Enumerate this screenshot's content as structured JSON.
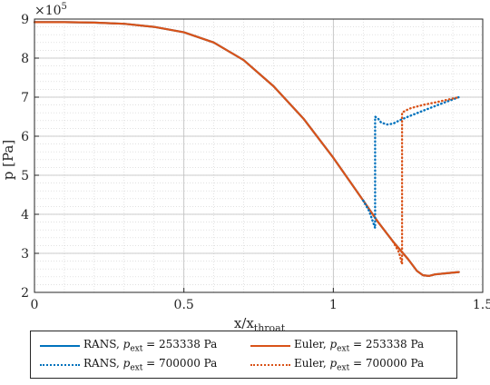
{
  "chart_data": {
    "type": "line",
    "xlabel": "x/x",
    "xlabel_sub": "throat",
    "ylabel": "p [Pa]",
    "y_exponent_label": "×10",
    "y_exponent_power": "5",
    "xlim": [
      0,
      1.5
    ],
    "ylim": [
      2,
      9
    ],
    "x_ticks": [
      "0",
      "0.5",
      "1",
      "1.5"
    ],
    "y_ticks": [
      "2",
      "3",
      "4",
      "5",
      "6",
      "7",
      "8",
      "9"
    ],
    "grid": "on (major and minor, dotted)",
    "legend_placement": "below plot, 2 columns",
    "series": [
      {
        "name_main": "RANS, ",
        "name_sym": "p",
        "name_sub": "ext",
        "name_value": " = 253338 Pa",
        "color": "#0072BD",
        "style": "solid",
        "points": [
          [
            0,
            8.92
          ],
          [
            0.1,
            8.92
          ],
          [
            0.2,
            8.91
          ],
          [
            0.3,
            8.88
          ],
          [
            0.4,
            8.8
          ],
          [
            0.5,
            8.66
          ],
          [
            0.6,
            8.4
          ],
          [
            0.7,
            7.95
          ],
          [
            0.8,
            7.28
          ],
          [
            0.9,
            6.45
          ],
          [
            1.0,
            5.45
          ],
          [
            1.05,
            4.9
          ],
          [
            1.1,
            4.35
          ],
          [
            1.15,
            3.8
          ],
          [
            1.2,
            3.3
          ],
          [
            1.25,
            2.85
          ],
          [
            1.28,
            2.55
          ],
          [
            1.3,
            2.44
          ],
          [
            1.32,
            2.42
          ],
          [
            1.34,
            2.46
          ],
          [
            1.38,
            2.49
          ],
          [
            1.42,
            2.52
          ]
        ]
      },
      {
        "name_main": "RANS, ",
        "name_sym": "p",
        "name_sub": "ext",
        "name_value": " = 700000 Pa",
        "color": "#0072BD",
        "style": "dotted",
        "points": [
          [
            1.1,
            4.35
          ],
          [
            1.12,
            4.08
          ],
          [
            1.14,
            3.65
          ],
          [
            1.14,
            6.5
          ],
          [
            1.15,
            6.45
          ],
          [
            1.16,
            6.35
          ],
          [
            1.18,
            6.3
          ],
          [
            1.2,
            6.32
          ],
          [
            1.22,
            6.4
          ],
          [
            1.25,
            6.5
          ],
          [
            1.3,
            6.65
          ],
          [
            1.35,
            6.8
          ],
          [
            1.42,
            7.0
          ]
        ]
      },
      {
        "name_main": "Euler, ",
        "name_sym": "p",
        "name_sub": "ext",
        "name_value": " = 253338 Pa",
        "color": "#D95319",
        "style": "solid",
        "points": [
          [
            0,
            8.92
          ],
          [
            0.1,
            8.92
          ],
          [
            0.2,
            8.91
          ],
          [
            0.3,
            8.88
          ],
          [
            0.4,
            8.8
          ],
          [
            0.5,
            8.66
          ],
          [
            0.6,
            8.4
          ],
          [
            0.7,
            7.95
          ],
          [
            0.8,
            7.28
          ],
          [
            0.9,
            6.45
          ],
          [
            1.0,
            5.45
          ],
          [
            1.05,
            4.9
          ],
          [
            1.1,
            4.35
          ],
          [
            1.15,
            3.8
          ],
          [
            1.2,
            3.3
          ],
          [
            1.25,
            2.85
          ],
          [
            1.28,
            2.55
          ],
          [
            1.3,
            2.44
          ],
          [
            1.32,
            2.42
          ],
          [
            1.34,
            2.46
          ],
          [
            1.38,
            2.49
          ],
          [
            1.42,
            2.52
          ]
        ]
      },
      {
        "name_main": "Euler, ",
        "name_sym": "p",
        "name_sub": "ext",
        "name_value": " = 700000 Pa",
        "color": "#D95319",
        "style": "dotted",
        "points": [
          [
            1.2,
            3.3
          ],
          [
            1.22,
            3.02
          ],
          [
            1.23,
            2.72
          ],
          [
            1.23,
            6.6
          ],
          [
            1.24,
            6.65
          ],
          [
            1.26,
            6.72
          ],
          [
            1.3,
            6.8
          ],
          [
            1.35,
            6.88
          ],
          [
            1.42,
            7.0
          ]
        ]
      }
    ]
  }
}
